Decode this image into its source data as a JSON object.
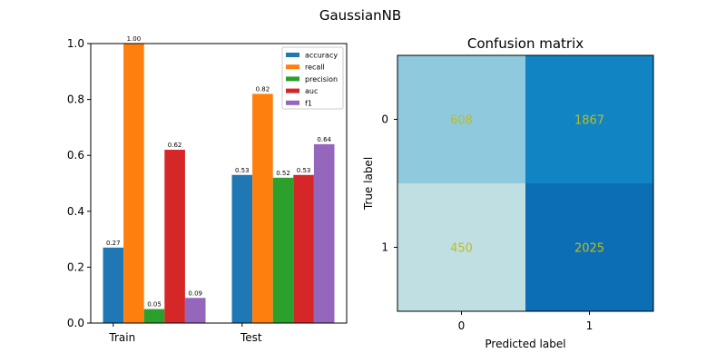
{
  "figure": {
    "suptitle": "GaussianNB"
  },
  "chart_data": [
    {
      "type": "bar",
      "title": "",
      "xlabel": "",
      "ylabel": "",
      "ylim": [
        0,
        1.0
      ],
      "yticks": [
        "0.0",
        "0.2",
        "0.4",
        "0.6",
        "0.8",
        "1.0"
      ],
      "categories": [
        "Train",
        "Test"
      ],
      "legend_position": "top-right",
      "series": [
        {
          "name": "accuracy",
          "color": "#1f77b4",
          "values": [
            0.27,
            0.53
          ],
          "labels": [
            "0.27",
            "0.53"
          ]
        },
        {
          "name": "recall",
          "color": "#ff7f0e",
          "values": [
            1.0,
            0.82
          ],
          "labels": [
            "1.00",
            "0.82"
          ]
        },
        {
          "name": "precision",
          "color": "#2ca02c",
          "values": [
            0.05,
            0.52
          ],
          "labels": [
            "0.05",
            "0.52"
          ]
        },
        {
          "name": "auc",
          "color": "#d62728",
          "values": [
            0.62,
            0.53
          ],
          "labels": [
            "0.62",
            "0.53"
          ]
        },
        {
          "name": "f1",
          "color": "#9467bd",
          "values": [
            0.09,
            0.64
          ],
          "labels": [
            "0.09",
            "0.64"
          ]
        }
      ]
    },
    {
      "type": "heatmap",
      "title": "Confusion matrix",
      "xlabel": "Predicted label",
      "ylabel": "True label",
      "x_categories": [
        "0",
        "1"
      ],
      "y_categories": [
        "0",
        "1"
      ],
      "cells": [
        {
          "row": 0,
          "col": 0,
          "label": "608",
          "color": "#8fc9dd"
        },
        {
          "row": 0,
          "col": 1,
          "label": "1867",
          "color": "#1184c3"
        },
        {
          "row": 1,
          "col": 0,
          "label": "450",
          "color": "#c0dfe2"
        },
        {
          "row": 1,
          "col": 1,
          "label": "2025",
          "color": "#0c6eb4"
        }
      ],
      "text_color": "#bcbd22"
    }
  ]
}
